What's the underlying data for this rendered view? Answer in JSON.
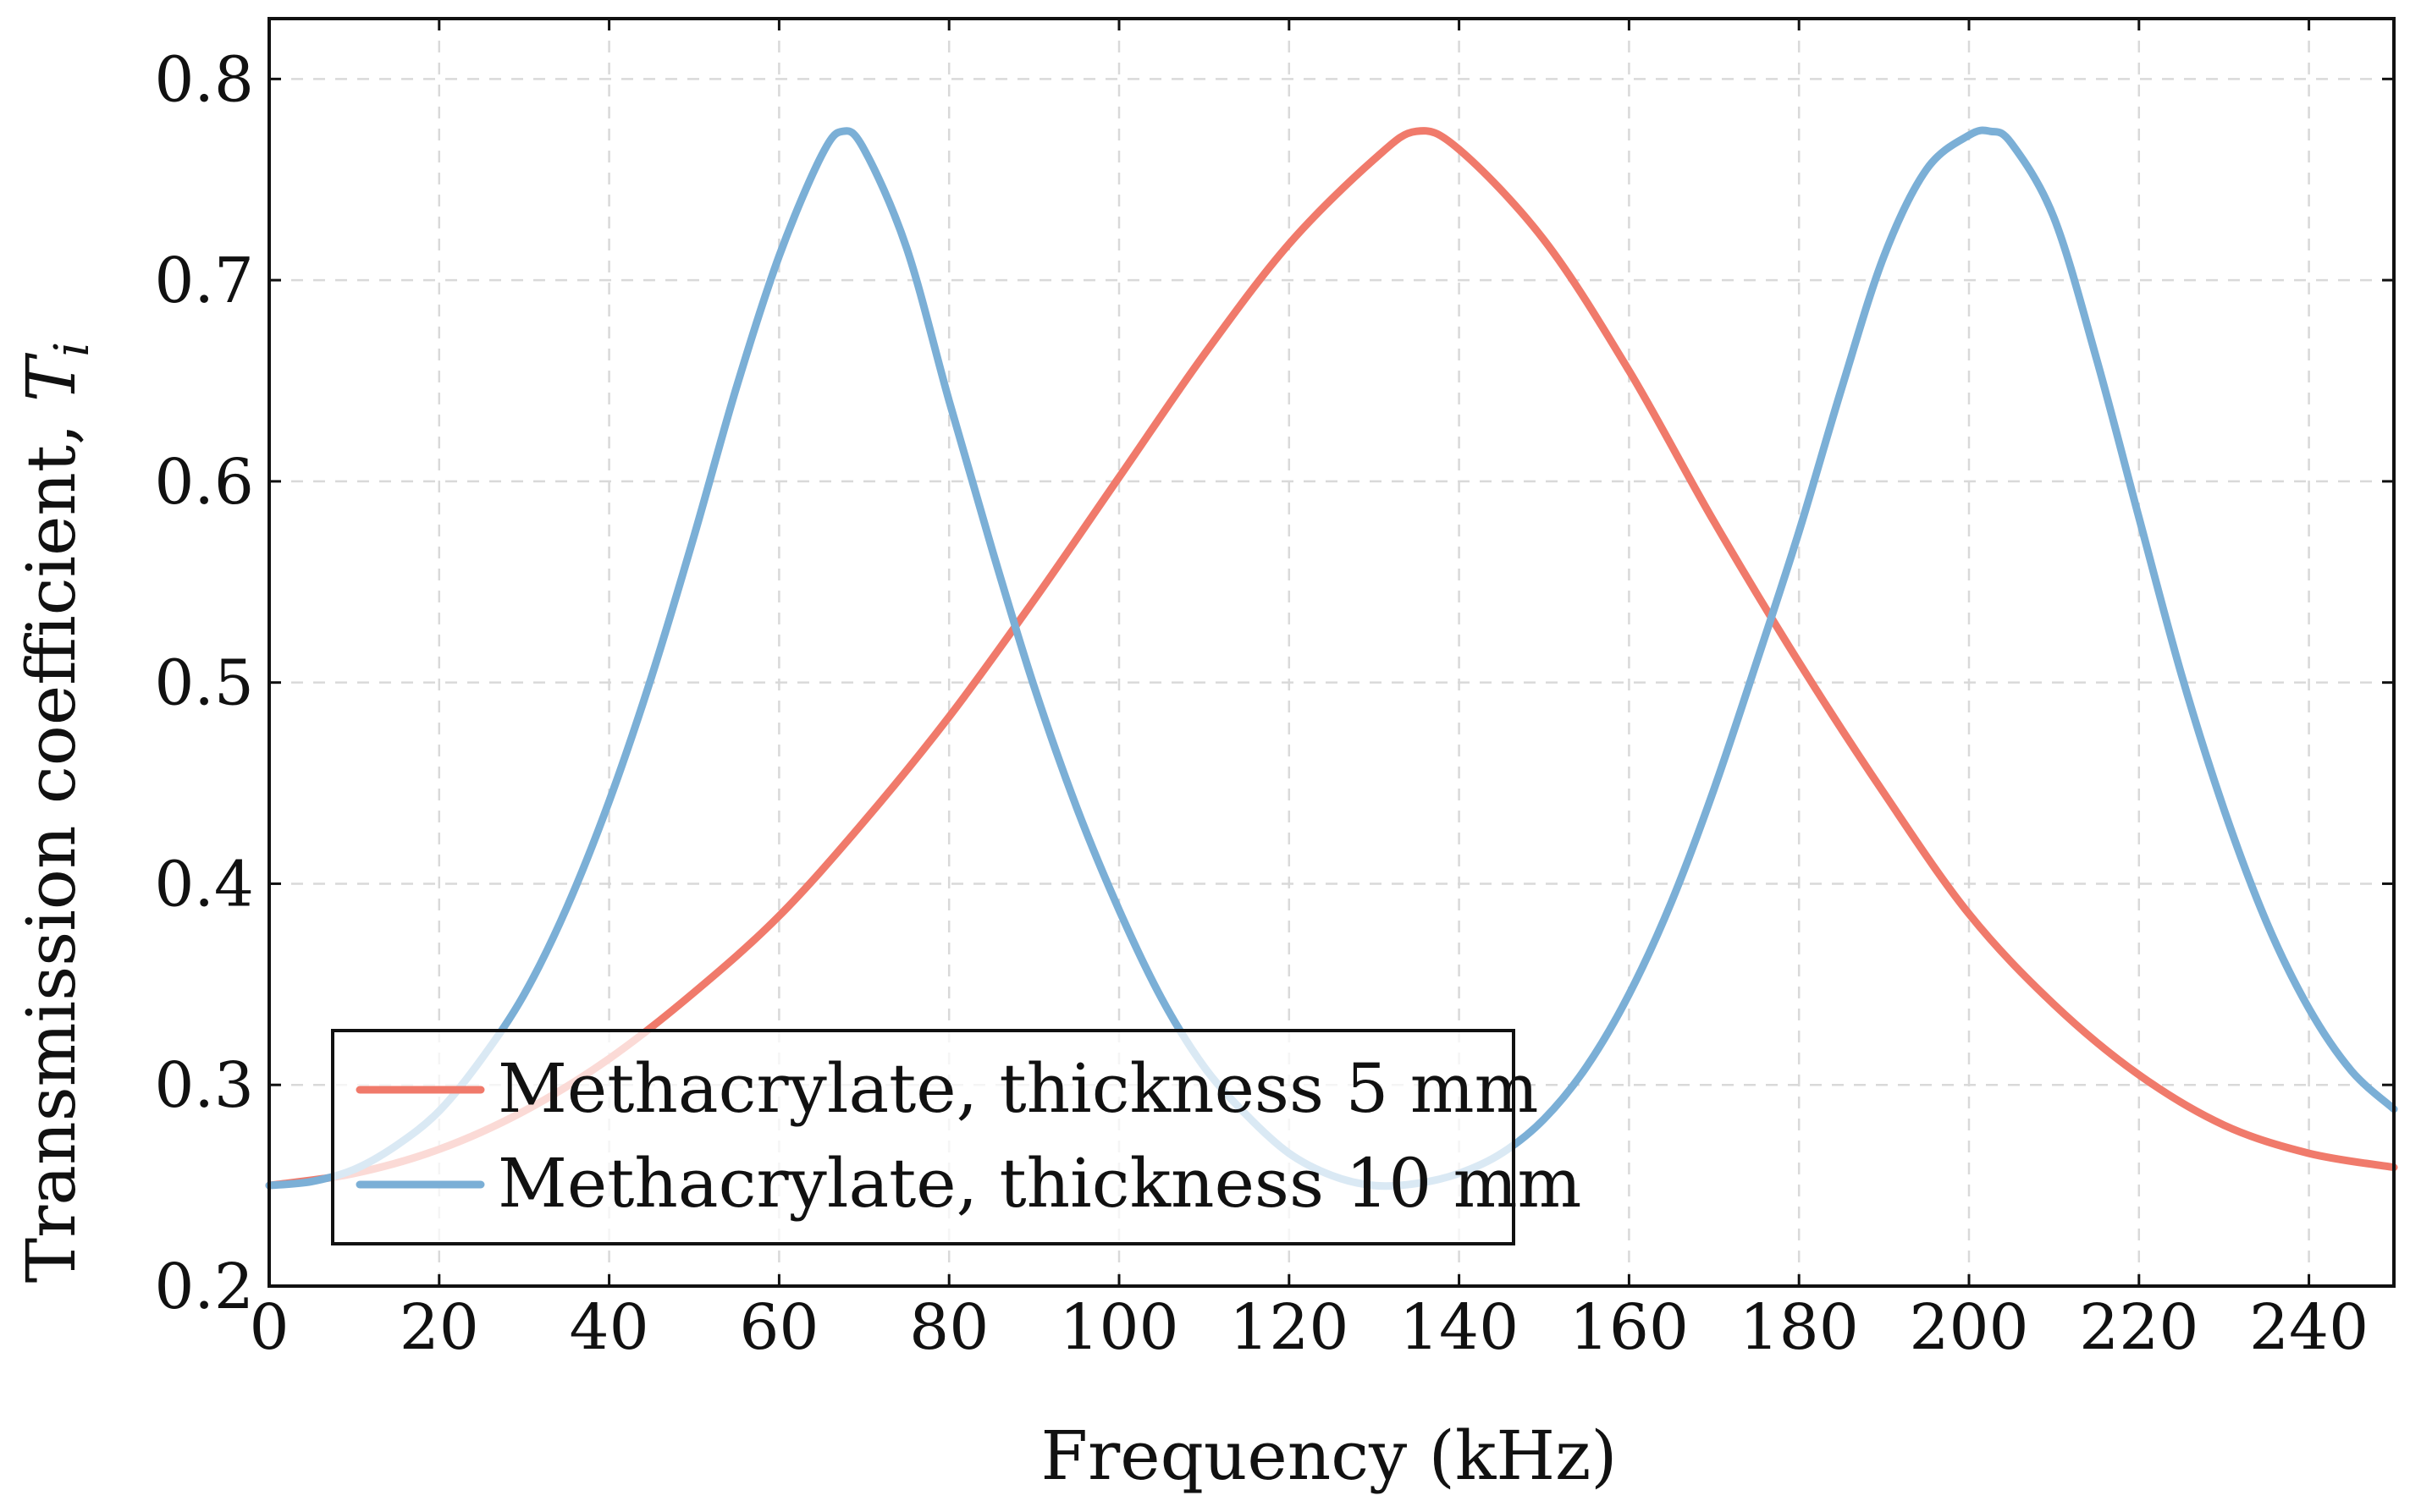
{
  "chart_data": {
    "type": "line",
    "title": "",
    "xlabel": "Frequency (kHz)",
    "ylabel": "Transmission coefficient, ",
    "ylabel_symbol": "T",
    "ylabel_subscript": "i",
    "xlim": [
      0,
      250
    ],
    "ylim": [
      0.2,
      0.83
    ],
    "xticks": [
      0,
      20,
      40,
      60,
      80,
      100,
      120,
      140,
      160,
      180,
      200,
      220,
      240
    ],
    "xtick_labels": [
      "0",
      "20",
      "40",
      "60",
      "80",
      "100",
      "120",
      "140",
      "160",
      "180",
      "200",
      "220",
      "240"
    ],
    "yticks": [
      0.2,
      0.3,
      0.4,
      0.5,
      0.6,
      0.7,
      0.8
    ],
    "ytick_labels": [
      "0.2",
      "0.3",
      "0.4",
      "0.5",
      "0.6",
      "0.7",
      "0.8"
    ],
    "grid": true,
    "legend_position": "bottom-left",
    "series": [
      {
        "name": "Methacrylate, thickness 5 mm",
        "color": "#f07a6b",
        "x": [
          0,
          10,
          20,
          30,
          40,
          50,
          60,
          70,
          80,
          90,
          100,
          110,
          120,
          130,
          135,
          140,
          150,
          160,
          170,
          180,
          190,
          200,
          210,
          220,
          230,
          240,
          250
        ],
        "y": [
          0.25,
          0.256,
          0.268,
          0.287,
          0.313,
          0.346,
          0.384,
          0.431,
          0.483,
          0.541,
          0.602,
          0.663,
          0.718,
          0.76,
          0.774,
          0.765,
          0.72,
          0.655,
          0.58,
          0.51,
          0.445,
          0.385,
          0.34,
          0.305,
          0.28,
          0.266,
          0.259
        ]
      },
      {
        "name": "Methacrylate, thickness 10 mm",
        "color": "#7bafd6",
        "x": [
          0,
          5,
          10,
          15,
          20,
          25,
          30,
          35,
          40,
          45,
          50,
          55,
          60,
          65,
          67.5,
          70,
          75,
          80,
          85,
          90,
          95,
          100,
          105,
          110,
          115,
          120,
          125,
          130,
          135,
          140,
          145,
          150,
          155,
          160,
          165,
          170,
          175,
          180,
          185,
          190,
          195,
          200,
          202.5,
          205,
          210,
          215,
          220,
          225,
          230,
          235,
          240,
          245,
          250
        ],
        "y": [
          0.25,
          0.252,
          0.258,
          0.27,
          0.287,
          0.313,
          0.345,
          0.388,
          0.441,
          0.503,
          0.573,
          0.647,
          0.712,
          0.762,
          0.774,
          0.765,
          0.716,
          0.64,
          0.567,
          0.498,
          0.438,
          0.387,
          0.343,
          0.309,
          0.285,
          0.266,
          0.255,
          0.25,
          0.251,
          0.256,
          0.266,
          0.283,
          0.309,
          0.345,
          0.391,
          0.447,
          0.51,
          0.575,
          0.646,
          0.712,
          0.755,
          0.772,
          0.774,
          0.768,
          0.731,
          0.661,
          0.582,
          0.504,
          0.437,
          0.381,
          0.338,
          0.307,
          0.288
        ]
      }
    ]
  }
}
